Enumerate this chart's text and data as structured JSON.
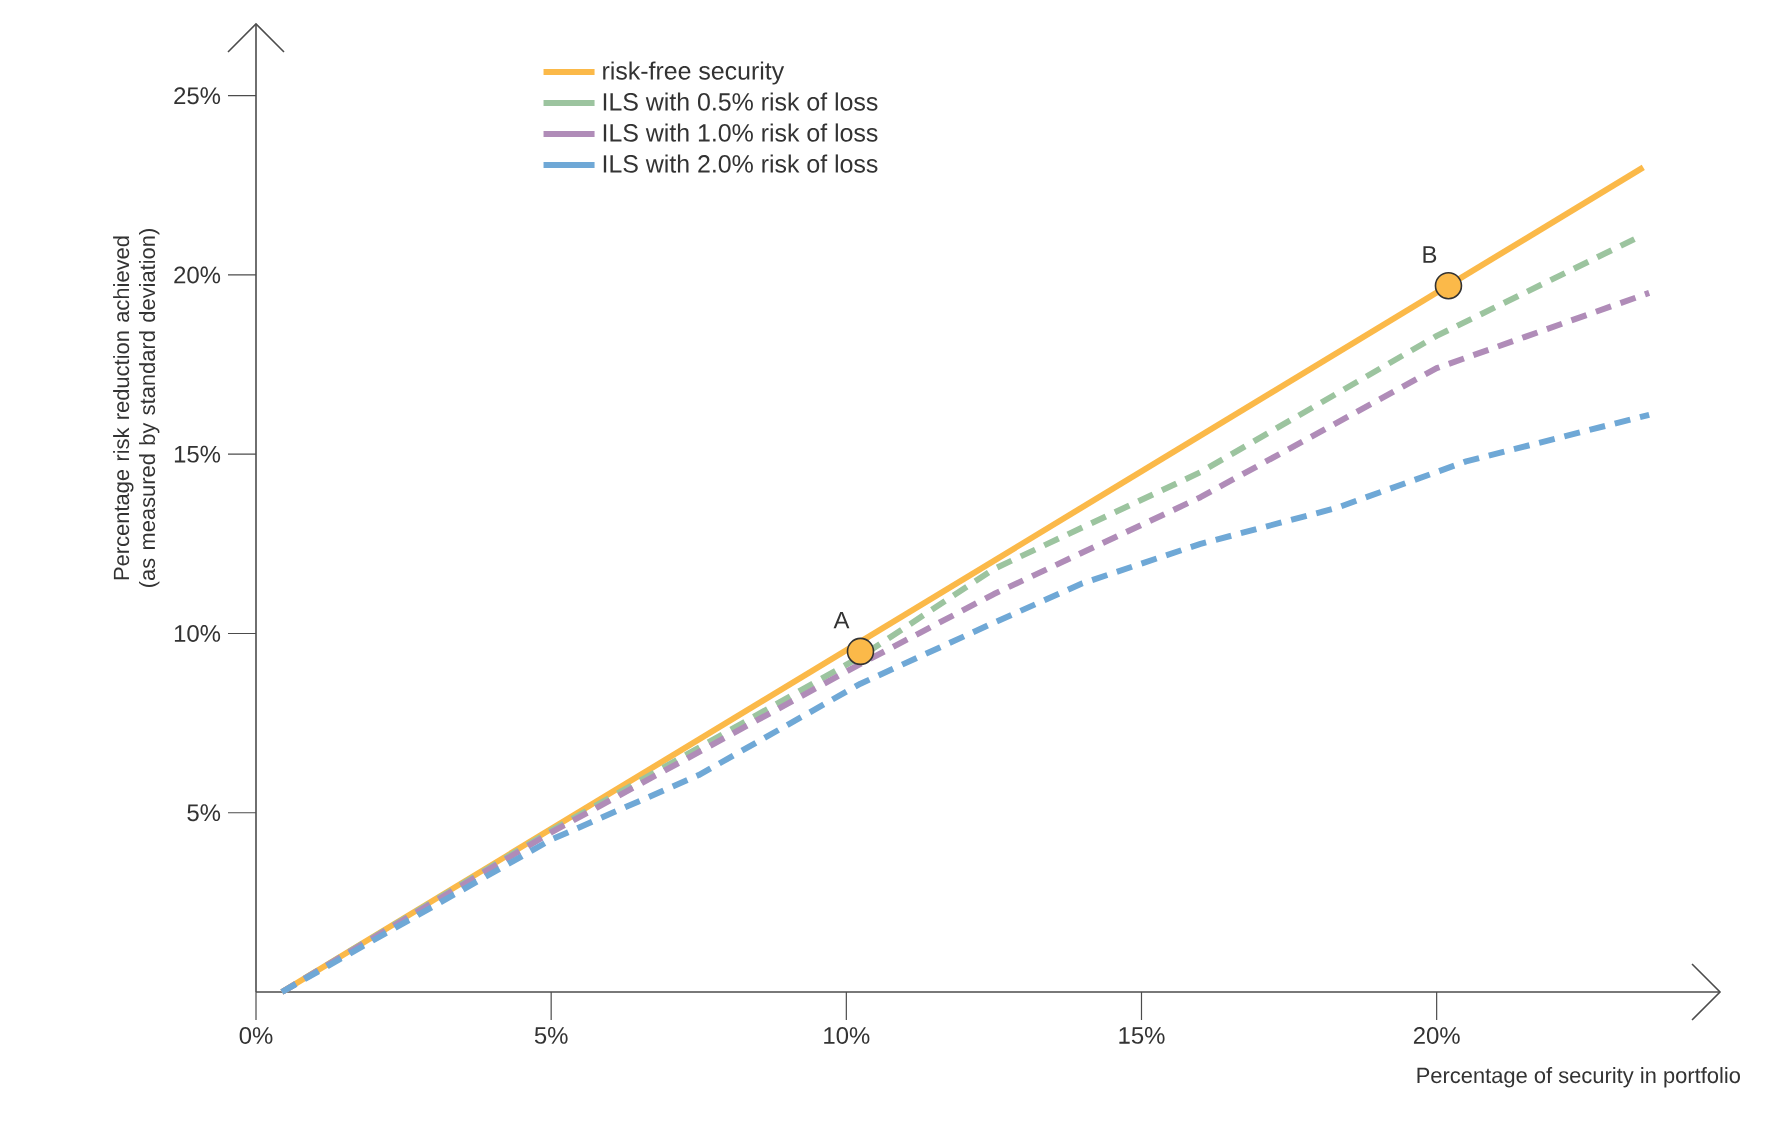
{
  "chart_data": {
    "type": "line",
    "xlabel": "Percentage of security in portfolio",
    "ylabel": "Percentage risk reduction achieved (as measured by standard deviation)",
    "xlim": [
      0,
      24.8
    ],
    "ylim": [
      0,
      27
    ],
    "xticks": [
      {
        "value": 0,
        "label": "0%"
      },
      {
        "value": 5,
        "label": "5%"
      },
      {
        "value": 10,
        "label": "10%"
      },
      {
        "value": 15,
        "label": "15%"
      },
      {
        "value": 20,
        "label": "20%"
      }
    ],
    "yticks": [
      {
        "value": 5,
        "label": "5%"
      },
      {
        "value": 10,
        "label": "10%"
      },
      {
        "value": 15,
        "label": "15%"
      },
      {
        "value": 20,
        "label": "20%"
      },
      {
        "value": 25,
        "label": "25%"
      }
    ],
    "legend": "top left",
    "grid": false,
    "series": [
      {
        "name": "risk-free security",
        "color": "#fbb949",
        "line_style": "solid",
        "x": [
          0.44,
          23.5
        ],
        "values": [
          0,
          23.0
        ]
      },
      {
        "name": "ILS with 0.5% risk of loss",
        "color": "#9cc49f",
        "line_style": "dashed",
        "x": [
          0.44,
          5,
          10.24,
          12.5,
          16,
          20,
          23.35
        ],
        "values": [
          0,
          4.5,
          9.35,
          11.8,
          14.5,
          18.3,
          21.0
        ]
      },
      {
        "name": "ILS with 1.0% risk of loss",
        "color": "#b08cb8",
        "line_style": "dashed",
        "x": [
          0.44,
          5,
          10.24,
          12.5,
          16,
          20,
          23.6
        ],
        "values": [
          0,
          4.45,
          9.15,
          11.1,
          13.8,
          17.4,
          19.5
        ]
      },
      {
        "name": "ILS with 2.0% risk of loss",
        "color": "#6fa8d6",
        "line_style": "dashed",
        "x": [
          0.44,
          5,
          7.5,
          10.24,
          12.5,
          14,
          16,
          18.3,
          20.5,
          23.6
        ],
        "values": [
          0,
          4.25,
          6.05,
          8.6,
          10.3,
          11.4,
          12.5,
          13.5,
          14.8,
          16.1
        ]
      },
      {
        "type": "scatter",
        "marker": "circle",
        "color": "#fbb949",
        "x": [
          10.24,
          20.2
        ],
        "values": [
          9.5,
          19.7
        ]
      }
    ],
    "annotations": [
      {
        "text": "A",
        "x": 10.24,
        "y": 9.5
      },
      {
        "text": "B",
        "x": 20.2,
        "y": 19.7
      }
    ]
  }
}
